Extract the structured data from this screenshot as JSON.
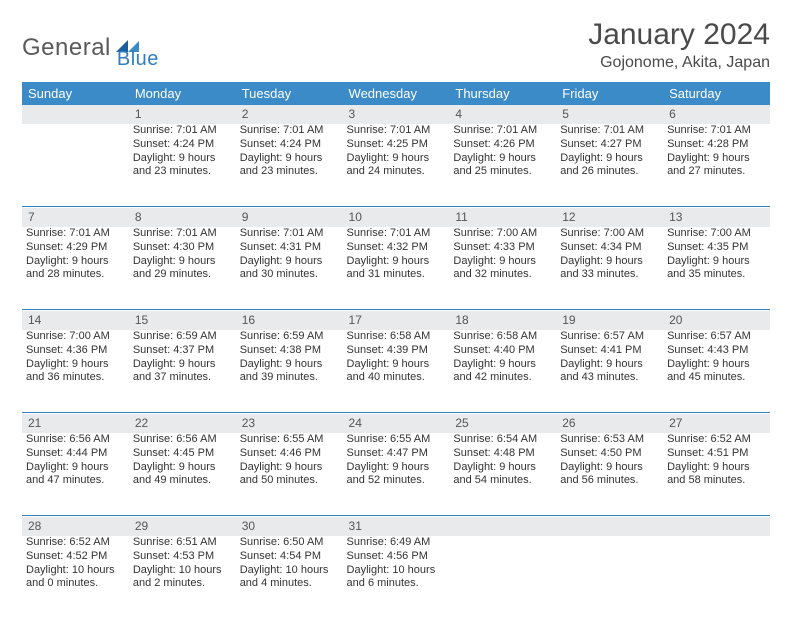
{
  "brand": {
    "part1": "General",
    "part2": "Blue"
  },
  "title": "January 2024",
  "location": "Gojonome, Akita, Japan",
  "colors": {
    "header_bg": "#3b8bc9",
    "daynum_bg": "#e9eaec",
    "sep": "#2f7fc1",
    "text": "#333333"
  },
  "weekdays": [
    "Sunday",
    "Monday",
    "Tuesday",
    "Wednesday",
    "Thursday",
    "Friday",
    "Saturday"
  ],
  "weeks": [
    [
      null,
      {
        "n": "1",
        "sr": "Sunrise: 7:01 AM",
        "ss": "Sunset: 4:24 PM",
        "d1": "Daylight: 9 hours",
        "d2": "and 23 minutes."
      },
      {
        "n": "2",
        "sr": "Sunrise: 7:01 AM",
        "ss": "Sunset: 4:24 PM",
        "d1": "Daylight: 9 hours",
        "d2": "and 23 minutes."
      },
      {
        "n": "3",
        "sr": "Sunrise: 7:01 AM",
        "ss": "Sunset: 4:25 PM",
        "d1": "Daylight: 9 hours",
        "d2": "and 24 minutes."
      },
      {
        "n": "4",
        "sr": "Sunrise: 7:01 AM",
        "ss": "Sunset: 4:26 PM",
        "d1": "Daylight: 9 hours",
        "d2": "and 25 minutes."
      },
      {
        "n": "5",
        "sr": "Sunrise: 7:01 AM",
        "ss": "Sunset: 4:27 PM",
        "d1": "Daylight: 9 hours",
        "d2": "and 26 minutes."
      },
      {
        "n": "6",
        "sr": "Sunrise: 7:01 AM",
        "ss": "Sunset: 4:28 PM",
        "d1": "Daylight: 9 hours",
        "d2": "and 27 minutes."
      }
    ],
    [
      {
        "n": "7",
        "sr": "Sunrise: 7:01 AM",
        "ss": "Sunset: 4:29 PM",
        "d1": "Daylight: 9 hours",
        "d2": "and 28 minutes."
      },
      {
        "n": "8",
        "sr": "Sunrise: 7:01 AM",
        "ss": "Sunset: 4:30 PM",
        "d1": "Daylight: 9 hours",
        "d2": "and 29 minutes."
      },
      {
        "n": "9",
        "sr": "Sunrise: 7:01 AM",
        "ss": "Sunset: 4:31 PM",
        "d1": "Daylight: 9 hours",
        "d2": "and 30 minutes."
      },
      {
        "n": "10",
        "sr": "Sunrise: 7:01 AM",
        "ss": "Sunset: 4:32 PM",
        "d1": "Daylight: 9 hours",
        "d2": "and 31 minutes."
      },
      {
        "n": "11",
        "sr": "Sunrise: 7:00 AM",
        "ss": "Sunset: 4:33 PM",
        "d1": "Daylight: 9 hours",
        "d2": "and 32 minutes."
      },
      {
        "n": "12",
        "sr": "Sunrise: 7:00 AM",
        "ss": "Sunset: 4:34 PM",
        "d1": "Daylight: 9 hours",
        "d2": "and 33 minutes."
      },
      {
        "n": "13",
        "sr": "Sunrise: 7:00 AM",
        "ss": "Sunset: 4:35 PM",
        "d1": "Daylight: 9 hours",
        "d2": "and 35 minutes."
      }
    ],
    [
      {
        "n": "14",
        "sr": "Sunrise: 7:00 AM",
        "ss": "Sunset: 4:36 PM",
        "d1": "Daylight: 9 hours",
        "d2": "and 36 minutes."
      },
      {
        "n": "15",
        "sr": "Sunrise: 6:59 AM",
        "ss": "Sunset: 4:37 PM",
        "d1": "Daylight: 9 hours",
        "d2": "and 37 minutes."
      },
      {
        "n": "16",
        "sr": "Sunrise: 6:59 AM",
        "ss": "Sunset: 4:38 PM",
        "d1": "Daylight: 9 hours",
        "d2": "and 39 minutes."
      },
      {
        "n": "17",
        "sr": "Sunrise: 6:58 AM",
        "ss": "Sunset: 4:39 PM",
        "d1": "Daylight: 9 hours",
        "d2": "and 40 minutes."
      },
      {
        "n": "18",
        "sr": "Sunrise: 6:58 AM",
        "ss": "Sunset: 4:40 PM",
        "d1": "Daylight: 9 hours",
        "d2": "and 42 minutes."
      },
      {
        "n": "19",
        "sr": "Sunrise: 6:57 AM",
        "ss": "Sunset: 4:41 PM",
        "d1": "Daylight: 9 hours",
        "d2": "and 43 minutes."
      },
      {
        "n": "20",
        "sr": "Sunrise: 6:57 AM",
        "ss": "Sunset: 4:43 PM",
        "d1": "Daylight: 9 hours",
        "d2": "and 45 minutes."
      }
    ],
    [
      {
        "n": "21",
        "sr": "Sunrise: 6:56 AM",
        "ss": "Sunset: 4:44 PM",
        "d1": "Daylight: 9 hours",
        "d2": "and 47 minutes."
      },
      {
        "n": "22",
        "sr": "Sunrise: 6:56 AM",
        "ss": "Sunset: 4:45 PM",
        "d1": "Daylight: 9 hours",
        "d2": "and 49 minutes."
      },
      {
        "n": "23",
        "sr": "Sunrise: 6:55 AM",
        "ss": "Sunset: 4:46 PM",
        "d1": "Daylight: 9 hours",
        "d2": "and 50 minutes."
      },
      {
        "n": "24",
        "sr": "Sunrise: 6:55 AM",
        "ss": "Sunset: 4:47 PM",
        "d1": "Daylight: 9 hours",
        "d2": "and 52 minutes."
      },
      {
        "n": "25",
        "sr": "Sunrise: 6:54 AM",
        "ss": "Sunset: 4:48 PM",
        "d1": "Daylight: 9 hours",
        "d2": "and 54 minutes."
      },
      {
        "n": "26",
        "sr": "Sunrise: 6:53 AM",
        "ss": "Sunset: 4:50 PM",
        "d1": "Daylight: 9 hours",
        "d2": "and 56 minutes."
      },
      {
        "n": "27",
        "sr": "Sunrise: 6:52 AM",
        "ss": "Sunset: 4:51 PM",
        "d1": "Daylight: 9 hours",
        "d2": "and 58 minutes."
      }
    ],
    [
      {
        "n": "28",
        "sr": "Sunrise: 6:52 AM",
        "ss": "Sunset: 4:52 PM",
        "d1": "Daylight: 10 hours",
        "d2": "and 0 minutes."
      },
      {
        "n": "29",
        "sr": "Sunrise: 6:51 AM",
        "ss": "Sunset: 4:53 PM",
        "d1": "Daylight: 10 hours",
        "d2": "and 2 minutes."
      },
      {
        "n": "30",
        "sr": "Sunrise: 6:50 AM",
        "ss": "Sunset: 4:54 PM",
        "d1": "Daylight: 10 hours",
        "d2": "and 4 minutes."
      },
      {
        "n": "31",
        "sr": "Sunrise: 6:49 AM",
        "ss": "Sunset: 4:56 PM",
        "d1": "Daylight: 10 hours",
        "d2": "and 6 minutes."
      },
      null,
      null,
      null
    ]
  ]
}
